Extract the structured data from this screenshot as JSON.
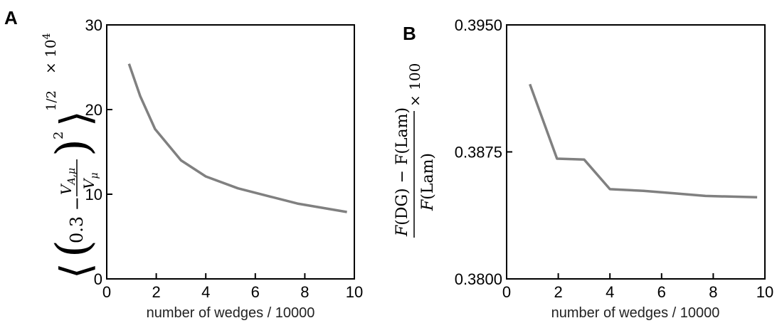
{
  "panels": [
    {
      "letter": "A"
    },
    {
      "letter": "B"
    }
  ],
  "chart_data": [
    {
      "type": "line",
      "panel": "A",
      "xlabel": "number of wedges / 10000",
      "ylabel": "⟨(0.3 − V_{A,μ}/V_μ)²⟩^{1/2} × 10⁴",
      "xlim": [
        0,
        10
      ],
      "ylim": [
        0,
        30
      ],
      "xticks": [
        0,
        2,
        4,
        6,
        8,
        10
      ],
      "yticks": [
        0,
        10,
        20,
        30
      ],
      "xtick_labels": [
        "0",
        "2",
        "4",
        "6",
        "8",
        "10"
      ],
      "ytick_labels": [
        "0",
        "10",
        "20",
        "30"
      ],
      "grid": false,
      "series": [
        {
          "x": [
            0.9,
            1.35,
            1.95,
            3.0,
            4.0,
            5.3,
            6.5,
            7.7,
            9.7
          ],
          "y": [
            25.4,
            21.6,
            17.7,
            14.0,
            12.1,
            10.7,
            9.8,
            8.9,
            7.9
          ]
        }
      ]
    },
    {
      "type": "line",
      "panel": "B",
      "xlabel": "number of wedges / 10000",
      "ylabel": "(F(DG) − F(Lam)) / F(Lam) × 100",
      "xlim": [
        0,
        10
      ],
      "ylim": [
        0.38,
        0.395
      ],
      "xticks": [
        0,
        2,
        4,
        6,
        8,
        10
      ],
      "yticks": [
        0.38,
        0.3875,
        0.395
      ],
      "xtick_labels": [
        "0",
        "2",
        "4",
        "6",
        "8",
        "10"
      ],
      "ytick_labels": [
        "0.3800",
        "0.3875",
        "0.3950"
      ],
      "grid": false,
      "series": [
        {
          "x": [
            0.9,
            1.95,
            3.0,
            4.0,
            5.3,
            6.5,
            7.7,
            9.7
          ],
          "y": [
            0.3915,
            0.3871,
            0.38705,
            0.3853,
            0.3852,
            0.38505,
            0.3849,
            0.38482
          ]
        }
      ]
    }
  ],
  "colors": {
    "line": "#808080",
    "axis": "#000000"
  }
}
